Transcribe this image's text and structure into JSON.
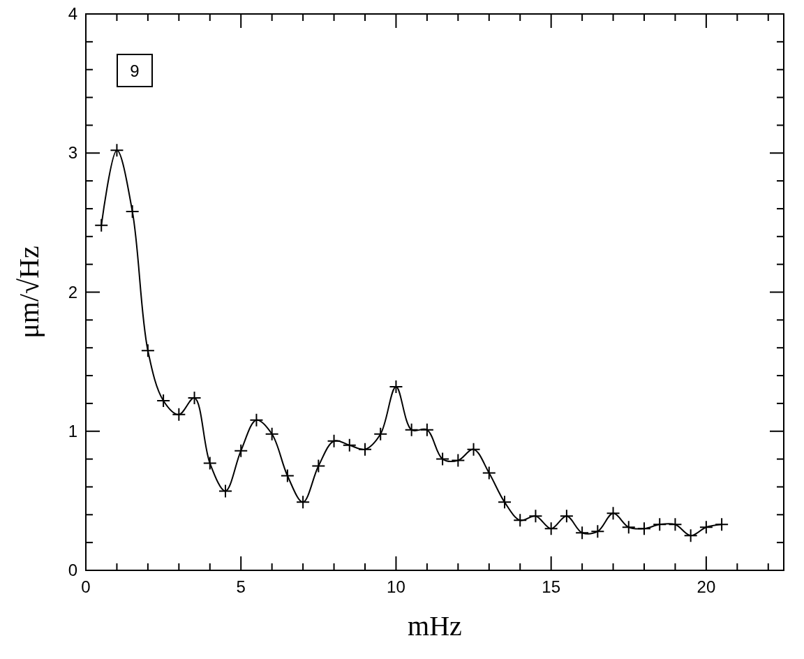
{
  "chart_data": {
    "type": "line",
    "xlabel": "mHz",
    "ylabel": "μm/√Hz",
    "annotations": [
      "9"
    ],
    "marker": "cross",
    "grid": false,
    "x": [
      0.5,
      1,
      1.5,
      2,
      2.5,
      3,
      3.5,
      4,
      4.5,
      5,
      5.5,
      6,
      6.5,
      7,
      7.5,
      8,
      8.5,
      9,
      9.5,
      10,
      10.5,
      11,
      11.5,
      12,
      12.5,
      13,
      13.5,
      14,
      14.5,
      15,
      15.5,
      16,
      16.5,
      17,
      17.5,
      18,
      18.5,
      19,
      19.5,
      20,
      20.5
    ],
    "series": [
      {
        "color": "#000000",
        "values": [
          2.48,
          3.02,
          2.58,
          1.58,
          1.22,
          1.12,
          1.24,
          0.77,
          0.57,
          0.86,
          1.08,
          0.98,
          0.68,
          0.49,
          0.75,
          0.93,
          0.9,
          0.87,
          0.98,
          1.32,
          1.01,
          1.01,
          0.8,
          0.79,
          0.87,
          0.7,
          0.49,
          0.36,
          0.39,
          0.3,
          0.39,
          0.27,
          0.28,
          0.41,
          0.31,
          0.3,
          0.33,
          0.33,
          0.25,
          0.31,
          0.33
        ]
      }
    ],
    "xlim": [
      0,
      22.5
    ],
    "ylim": [
      0,
      4
    ],
    "xticks": [
      0,
      {
        "value": 1,
        "label": null
      },
      {
        "value": 2,
        "label": null
      },
      {
        "value": 3,
        "label": null
      },
      {
        "value": 4,
        "label": null
      },
      5,
      {
        "value": 6,
        "label": null
      },
      {
        "value": 7,
        "label": null
      },
      {
        "value": 8,
        "label": null
      },
      {
        "value": 9,
        "label": null
      },
      10,
      {
        "value": 11,
        "label": null
      },
      {
        "value": 12,
        "label": null
      },
      {
        "value": 13,
        "label": null
      },
      {
        "value": 14,
        "label": null
      },
      15,
      {
        "value": 16,
        "label": null
      },
      {
        "value": 17,
        "label": null
      },
      {
        "value": 18,
        "label": null
      },
      {
        "value": 19,
        "label": null
      },
      20,
      {
        "value": 21,
        "label": null
      },
      {
        "value": 22,
        "label": null
      }
    ],
    "yticks": [
      0,
      {
        "value": 0.2,
        "label": null
      },
      {
        "value": 0.4,
        "label": null
      },
      {
        "value": 0.6,
        "label": null
      },
      {
        "value": 0.8,
        "label": null
      },
      1,
      {
        "value": 1.2,
        "label": null
      },
      {
        "value": 1.4,
        "label": null
      },
      {
        "value": 1.6,
        "label": null
      },
      {
        "value": 1.8,
        "label": null
      },
      2,
      {
        "value": 2.2,
        "label": null
      },
      {
        "value": 2.4,
        "label": null
      },
      {
        "value": 2.6,
        "label": null
      },
      {
        "value": 2.8,
        "label": null
      },
      3,
      {
        "value": 3.2,
        "label": null
      },
      {
        "value": 3.4,
        "label": null
      },
      {
        "value": 3.6,
        "label": null
      },
      {
        "value": 3.8,
        "label": null
      },
      4
    ]
  }
}
